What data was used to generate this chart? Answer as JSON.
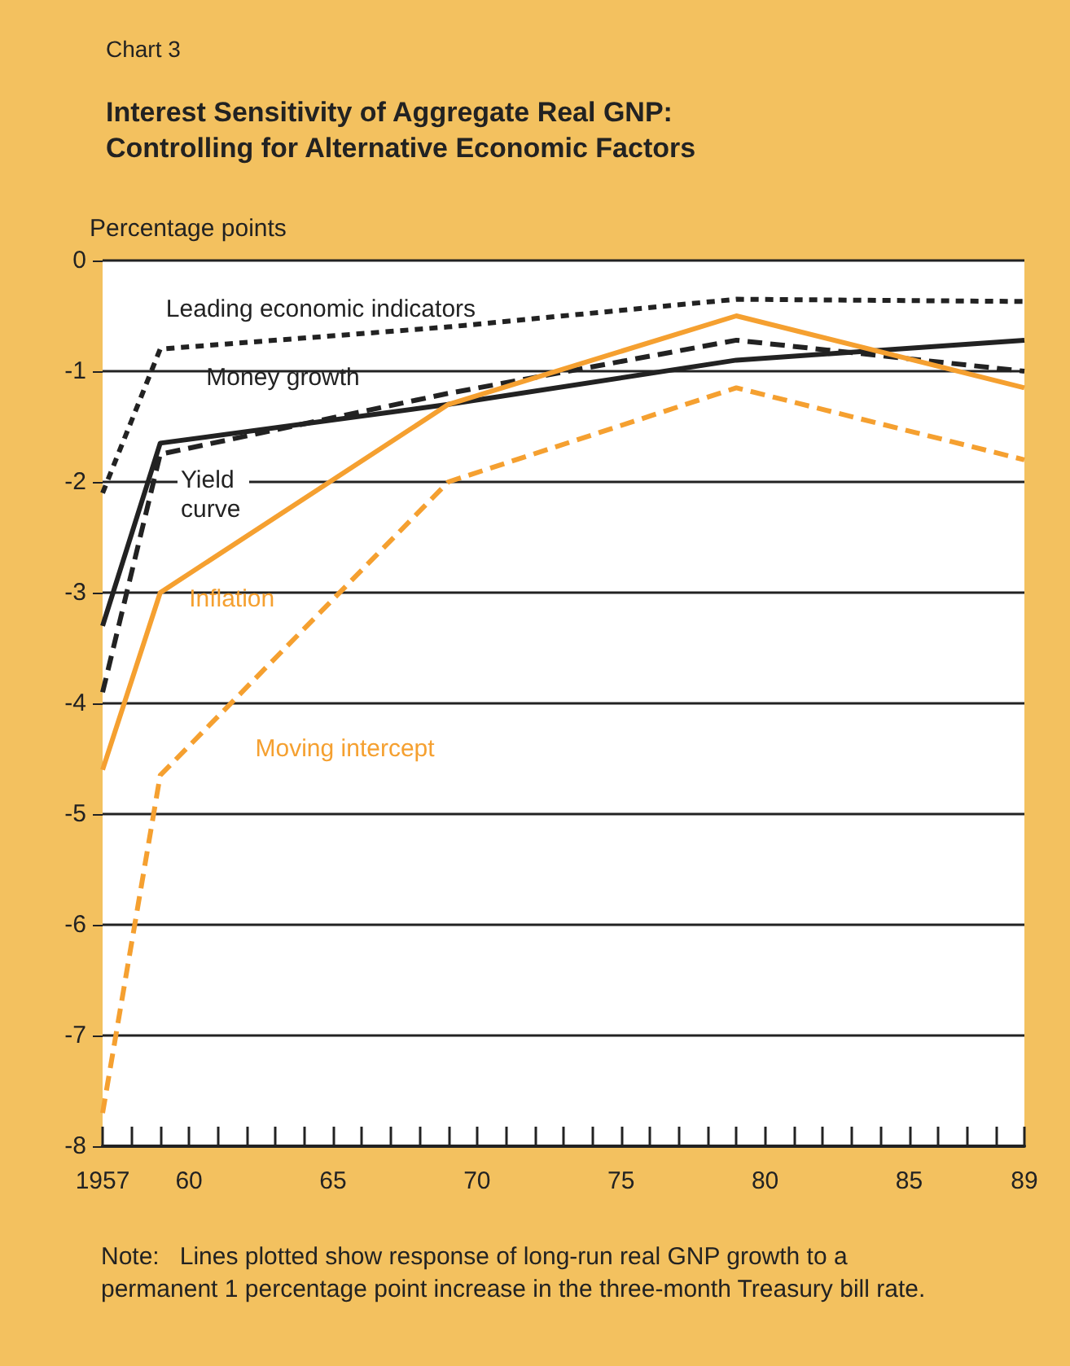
{
  "chart_data": {
    "type": "line",
    "subtitle": "Chart 3",
    "title": "Interest Sensitivity of Aggregate Real GNP:\nControlling for Alternative Economic Factors",
    "ylabel": "Percentage points",
    "x": [
      1957,
      1959,
      1969,
      1979,
      1989
    ],
    "series": [
      {
        "name": "Leading economic indicators",
        "color": "#222222",
        "line_style": "dotted",
        "values": [
          -2.1,
          -0.8,
          -0.6,
          -0.35,
          -0.37
        ]
      },
      {
        "name": "Money growth",
        "color": "#222222",
        "line_style": "solid",
        "values": [
          -3.3,
          -1.65,
          -1.3,
          -0.9,
          -0.72
        ]
      },
      {
        "name": "Yield curve",
        "color": "#222222",
        "line_style": "dashed",
        "values": [
          -3.9,
          -1.75,
          -1.2,
          -0.72,
          -1.0
        ]
      },
      {
        "name": "Inflation",
        "color": "#f5a030",
        "line_style": "solid",
        "values": [
          -4.6,
          -3.0,
          -1.3,
          -0.5,
          -1.15
        ]
      },
      {
        "name": "Moving intercept",
        "color": "#f5a030",
        "line_style": "dashed",
        "values": [
          -7.7,
          -4.65,
          -2.0,
          -1.15,
          -1.8
        ]
      }
    ],
    "xlim": [
      1957,
      1989
    ],
    "xticks": [
      {
        "value": 1957,
        "label": "1957"
      },
      {
        "value": 1958,
        "label": null
      },
      {
        "value": 1959,
        "label": null
      },
      {
        "value": 1960,
        "label": "60"
      },
      {
        "value": 1961,
        "label": null
      },
      {
        "value": 1962,
        "label": null
      },
      {
        "value": 1963,
        "label": null
      },
      {
        "value": 1964,
        "label": null
      },
      {
        "value": 1965,
        "label": "65"
      },
      {
        "value": 1966,
        "label": null
      },
      {
        "value": 1967,
        "label": null
      },
      {
        "value": 1968,
        "label": null
      },
      {
        "value": 1969,
        "label": null
      },
      {
        "value": 1970,
        "label": "70"
      },
      {
        "value": 1971,
        "label": null
      },
      {
        "value": 1972,
        "label": null
      },
      {
        "value": 1973,
        "label": null
      },
      {
        "value": 1974,
        "label": null
      },
      {
        "value": 1975,
        "label": "75"
      },
      {
        "value": 1976,
        "label": null
      },
      {
        "value": 1977,
        "label": null
      },
      {
        "value": 1978,
        "label": null
      },
      {
        "value": 1979,
        "label": null
      },
      {
        "value": 1980,
        "label": "80"
      },
      {
        "value": 1981,
        "label": null
      },
      {
        "value": 1982,
        "label": null
      },
      {
        "value": 1983,
        "label": null
      },
      {
        "value": 1984,
        "label": null
      },
      {
        "value": 1985,
        "label": "85"
      },
      {
        "value": 1986,
        "label": null
      },
      {
        "value": 1987,
        "label": null
      },
      {
        "value": 1988,
        "label": null
      },
      {
        "value": 1989,
        "label": "89"
      }
    ],
    "ylim": [
      -8,
      0
    ],
    "yticks": [
      -8,
      -7,
      -6,
      -5,
      -4,
      -3,
      -2,
      -1,
      0
    ],
    "grid": "y",
    "legend": false,
    "marker": "none",
    "annotations": [
      "Note:   Lines plotted show response of long-run real GNP growth to a permanent 1 percentage point increase in the three-month Treasury bill rate."
    ]
  }
}
